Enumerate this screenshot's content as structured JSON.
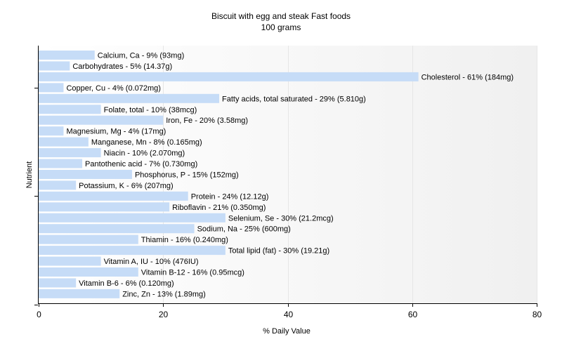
{
  "chart_data": {
    "type": "bar",
    "orientation": "horizontal",
    "title": "Biscuit with egg and steak Fast foods",
    "subtitle": "100 grams",
    "xlabel": "% Daily Value",
    "ylabel": "Nutrient",
    "xlim": [
      0,
      80
    ],
    "xticks": [
      "0",
      "20",
      "40",
      "60",
      "80"
    ],
    "grid": true,
    "bar_color": "#c6dcf7",
    "categories": [
      "Calcium, Ca",
      "Carbohydrates",
      "Cholesterol",
      "Copper, Cu",
      "Fatty acids, total saturated",
      "Folate, total",
      "Iron, Fe",
      "Magnesium, Mg",
      "Manganese, Mn",
      "Niacin",
      "Pantothenic acid",
      "Phosphorus, P",
      "Potassium, K",
      "Protein",
      "Riboflavin",
      "Selenium, Se",
      "Sodium, Na",
      "Thiamin",
      "Total lipid (fat)",
      "Vitamin A, IU",
      "Vitamin B-12",
      "Vitamin B-6",
      "Zinc, Zn"
    ],
    "values": [
      9,
      5,
      61,
      4,
      29,
      10,
      20,
      4,
      8,
      10,
      7,
      15,
      6,
      24,
      21,
      30,
      25,
      16,
      30,
      10,
      16,
      6,
      13
    ],
    "labels": [
      "Calcium, Ca - 9% (93mg)",
      "Carbohydrates - 5% (14.37g)",
      "Cholesterol - 61% (184mg)",
      "Copper, Cu - 4% (0.072mg)",
      "Fatty acids, total saturated - 29% (5.810g)",
      "Folate, total - 10% (38mcg)",
      "Iron, Fe - 20% (3.58mg)",
      "Magnesium, Mg - 4% (17mg)",
      "Manganese, Mn - 8% (0.165mg)",
      "Niacin - 10% (2.070mg)",
      "Pantothenic acid - 7% (0.730mg)",
      "Phosphorus, P - 15% (152mg)",
      "Potassium, K - 6% (207mg)",
      "Protein - 24% (12.12g)",
      "Riboflavin - 21% (0.350mg)",
      "Selenium, Se - 30% (21.2mcg)",
      "Sodium, Na - 25% (600mg)",
      "Thiamin - 16% (0.240mg)",
      "Total lipid (fat) - 30% (19.21g)",
      "Vitamin A, IU - 10% (476IU)",
      "Vitamin B-12 - 16% (0.95mcg)",
      "Vitamin B-6 - 6% (0.120mg)",
      "Zinc, Zn - 13% (1.89mg)"
    ]
  }
}
